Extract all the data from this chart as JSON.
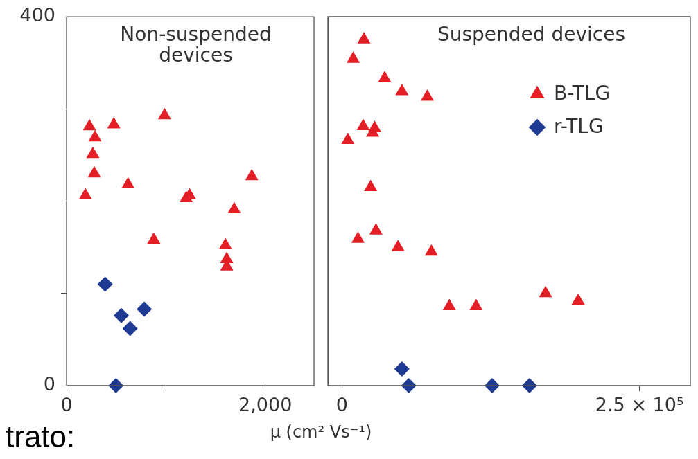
{
  "chart_data": [
    {
      "type": "scatter",
      "title": "Non-suspended devices",
      "xlabel": "μ (cm² Vs⁻¹)",
      "annotations": [
        "trato:"
      ],
      "xlim": [
        0,
        2490
      ],
      "xticks": [
        0,
        {
          "value": 1000,
          "label": null
        },
        {
          "value": 2000,
          "label": "2,000"
        }
      ],
      "ylim": [
        0,
        400
      ],
      "yticks": [
        0,
        {
          "value": 100,
          "label": null
        },
        {
          "value": 200,
          "label": null
        },
        {
          "value": 300,
          "label": null
        },
        400
      ],
      "grid": false,
      "legend": false,
      "series": [
        {
          "color": "#e31e24",
          "marker": "triangle",
          "x": [
            231,
            476,
            286,
            986,
            265,
            279,
            190,
            619,
            1864,
            1238,
            1204,
            1687,
            878,
            1599,
            1612,
            1612
          ],
          "values": [
            281,
            283,
            269,
            293,
            251,
            230,
            206,
            218,
            227,
            206,
            203,
            191,
            158,
            152,
            137,
            129
          ]
        },
        {
          "color": "#1f3a93",
          "marker": "diamond",
          "x": [
            388,
            551,
            782,
            639,
            497
          ],
          "values": [
            110,
            76,
            83,
            62,
            0
          ]
        }
      ]
    },
    {
      "type": "scatter",
      "title": "Suspended devices",
      "xlim": [
        -11800,
        292600
      ],
      "xticks": [
        0,
        {
          "value": 250000,
          "label": "2.5 × 10⁵"
        }
      ],
      "ylim": [
        0,
        400
      ],
      "tick_labels": "x",
      "grid": false,
      "legend": "top right",
      "series": [
        {
          "name": "B-TLG",
          "color": "#e31e24",
          "marker": "triangle",
          "x": [
            18500,
            9500,
            35900,
            50400,
            71700,
            17900,
            27500,
            25800,
            5000,
            24100,
            13500,
            28600,
            47100,
            75100,
            90200,
            112700,
            171000,
            198400
          ],
          "values": [
            375,
            354,
            333,
            319,
            313,
            281,
            279,
            274,
            266,
            215,
            159,
            168,
            150,
            145,
            86,
            86,
            100,
            92
          ]
        },
        {
          "name": "r-TLG",
          "color": "#1f3a93",
          "marker": "diamond",
          "x": [
            50400,
            56100,
            126100,
            157500
          ],
          "values": [
            18,
            0,
            0,
            0
          ]
        }
      ]
    }
  ]
}
